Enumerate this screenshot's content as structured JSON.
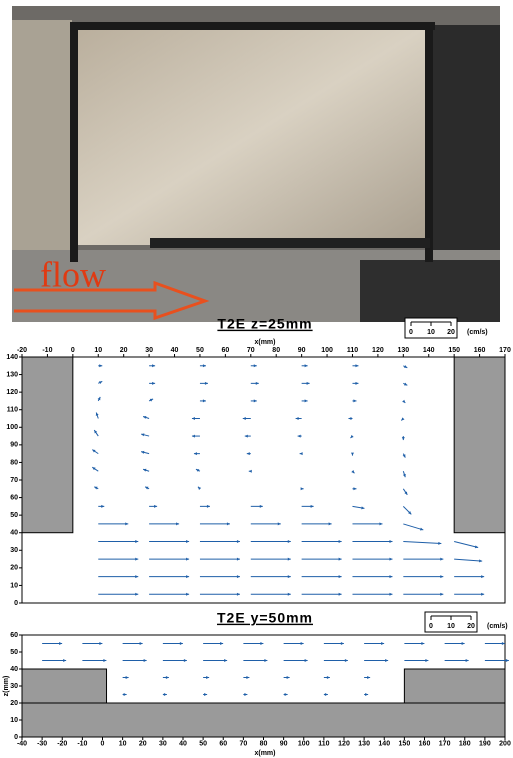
{
  "photo": {
    "label": "flow"
  },
  "chart_data": [
    {
      "type": "quiver",
      "title": "T2E  z=25mm",
      "x_label": "x(mm)",
      "units": "(cm/s)",
      "legend_ticks": [
        0,
        10,
        20
      ],
      "xlim": [
        -20,
        170
      ],
      "ylim": [
        0,
        140
      ],
      "xticks": [
        -20,
        -10,
        0,
        10,
        20,
        30,
        40,
        50,
        60,
        70,
        80,
        90,
        100,
        110,
        120,
        130,
        140,
        150,
        160,
        170
      ],
      "yticks": [
        0,
        10,
        20,
        30,
        40,
        50,
        60,
        70,
        80,
        90,
        100,
        110,
        120,
        130,
        140
      ],
      "color": "#1f5fa8",
      "obstacles": [
        {
          "x": [
            -20,
            0
          ],
          "y": [
            40,
            140
          ]
        },
        {
          "x": [
            150,
            170
          ],
          "y": [
            40,
            140
          ]
        }
      ],
      "x": [
        10,
        30,
        50,
        70,
        90,
        110,
        130,
        150
      ],
      "rows": [
        {
          "y": 5,
          "u": [
            20,
            20,
            20,
            20,
            20,
            20,
            20,
            15
          ],
          "v": [
            0,
            0,
            0,
            0,
            0,
            0,
            0,
            0
          ]
        },
        {
          "y": 15,
          "u": [
            20,
            20,
            20,
            20,
            20,
            20,
            20,
            15
          ],
          "v": [
            0,
            0,
            0,
            0,
            0,
            0,
            0,
            0
          ]
        },
        {
          "y": 25,
          "u": [
            20,
            20,
            20,
            20,
            20,
            20,
            20,
            14
          ],
          "v": [
            0,
            0,
            0,
            0,
            0,
            0,
            0,
            -1
          ]
        },
        {
          "y": 35,
          "u": [
            20,
            20,
            20,
            20,
            20,
            20,
            19,
            12
          ],
          "v": [
            0,
            0,
            0,
            0,
            0,
            0,
            -1,
            -3
          ]
        },
        {
          "y": 45,
          "u": [
            15,
            15,
            15,
            15,
            15,
            15,
            10,
            null
          ],
          "v": [
            0,
            0,
            0,
            0,
            0,
            0,
            -3,
            null
          ]
        },
        {
          "y": 55,
          "u": [
            3,
            4,
            5,
            6,
            6,
            6,
            4,
            null
          ],
          "v": [
            0,
            0,
            0,
            0,
            0,
            -1,
            -4,
            null
          ]
        },
        {
          "y": 65,
          "u": [
            -2,
            -2,
            -1,
            0,
            1,
            2,
            2,
            null
          ],
          "v": [
            1,
            1,
            1,
            0,
            0,
            0,
            -3,
            null
          ]
        },
        {
          "y": 75,
          "u": [
            -3,
            -3,
            -2,
            -1,
            0,
            1,
            1,
            null
          ],
          "v": [
            2,
            1,
            1,
            0,
            0,
            -1,
            -3,
            null
          ]
        },
        {
          "y": 85,
          "u": [
            -3,
            -4,
            -3,
            -2,
            -1,
            0,
            1,
            null
          ],
          "v": [
            2,
            1,
            0,
            0,
            0,
            -1,
            -2,
            null
          ]
        },
        {
          "y": 95,
          "u": [
            -2,
            -4,
            -4,
            -3,
            -2,
            -1,
            0,
            null
          ],
          "v": [
            3,
            1,
            0,
            0,
            0,
            -1,
            -2,
            null
          ]
        },
        {
          "y": 105,
          "u": [
            -1,
            -3,
            -4,
            -4,
            -3,
            -2,
            -1,
            null
          ],
          "v": [
            3,
            1,
            0,
            0,
            0,
            0,
            -1,
            null
          ]
        },
        {
          "y": 115,
          "u": [
            1,
            2,
            3,
            3,
            3,
            2,
            1,
            null
          ],
          "v": [
            2,
            1,
            0,
            0,
            0,
            0,
            -1,
            null
          ]
        },
        {
          "y": 125,
          "u": [
            2,
            3,
            4,
            4,
            4,
            3,
            2,
            null
          ],
          "v": [
            1,
            0,
            0,
            0,
            0,
            0,
            -1,
            null
          ]
        },
        {
          "y": 135,
          "u": [
            2,
            3,
            3,
            3,
            3,
            3,
            2,
            null
          ],
          "v": [
            0,
            0,
            0,
            0,
            0,
            0,
            -1,
            null
          ]
        }
      ]
    },
    {
      "type": "quiver",
      "title": "T2E  y=50mm",
      "x_label": "x(mm)",
      "y_label": "z(mm)",
      "units": "(cm/s)",
      "legend_ticks": [
        0,
        10,
        20
      ],
      "xlim": [
        -40,
        200
      ],
      "ylim": [
        0,
        60
      ],
      "xticks": [
        -40,
        -30,
        -20,
        -10,
        0,
        10,
        20,
        30,
        40,
        50,
        60,
        70,
        80,
        90,
        100,
        110,
        120,
        130,
        140,
        150,
        160,
        170,
        180,
        190,
        200
      ],
      "yticks": [
        0,
        10,
        20,
        30,
        40,
        50,
        60
      ],
      "color": "#1f5fa8",
      "obstacles": [
        {
          "x": [
            -40,
            200
          ],
          "y": [
            0,
            20
          ]
        },
        {
          "x": [
            -40,
            2
          ],
          "y": [
            20,
            40
          ]
        },
        {
          "x": [
            150,
            200
          ],
          "y": [
            20,
            40
          ]
        }
      ],
      "x": [
        -30,
        -10,
        10,
        30,
        50,
        70,
        90,
        110,
        130,
        150,
        170,
        190
      ],
      "rows": [
        {
          "y": 25,
          "u": [
            null,
            null,
            2,
            2,
            2,
            2,
            2,
            2,
            2,
            null,
            null,
            null
          ],
          "v": [
            null,
            null,
            0,
            0,
            0,
            0,
            0,
            0,
            0,
            null,
            null,
            null
          ]
        },
        {
          "y": 35,
          "u": [
            null,
            null,
            3,
            3,
            3,
            3,
            3,
            3,
            3,
            null,
            null,
            null
          ],
          "v": [
            null,
            null,
            0,
            0,
            0,
            0,
            0,
            0,
            0,
            null,
            null,
            null
          ]
        },
        {
          "y": 45,
          "u": [
            12,
            12,
            12,
            12,
            12,
            12,
            12,
            12,
            12,
            12,
            12,
            12
          ],
          "v": [
            0,
            0,
            0,
            0,
            0,
            0,
            0,
            0,
            0,
            0,
            0,
            0
          ]
        },
        {
          "y": 55,
          "u": [
            10,
            10,
            10,
            10,
            10,
            10,
            10,
            10,
            10,
            10,
            10,
            10
          ],
          "v": [
            0,
            0,
            0,
            0,
            0,
            0,
            0,
            0,
            0,
            0,
            0,
            0
          ]
        }
      ]
    }
  ]
}
